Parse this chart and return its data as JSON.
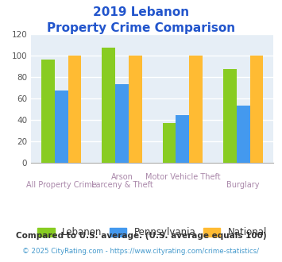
{
  "title_line1": "2019 Lebanon",
  "title_line2": "Property Crime Comparison",
  "x_labels_top": [
    "",
    "Arson",
    "Motor Vehicle Theft",
    ""
  ],
  "x_labels_bot": [
    "All Property Crime",
    "Larceny & Theft",
    "",
    "Burglary"
  ],
  "series": {
    "Lebanon": [
      96,
      107,
      37,
      87
    ],
    "Pennsylvania": [
      67,
      73,
      44,
      53
    ],
    "National": [
      100,
      100,
      100,
      100
    ]
  },
  "colors": {
    "Lebanon": "#88cc22",
    "Pennsylvania": "#4499ee",
    "National": "#ffbb33"
  },
  "ylim": [
    0,
    120
  ],
  "yticks": [
    0,
    20,
    40,
    60,
    80,
    100,
    120
  ],
  "title_color": "#2255cc",
  "title_fontsize": 11,
  "axis_bg_color": "#e6eef6",
  "grid_color": "#ffffff",
  "footnote1": "Compared to U.S. average. (U.S. average equals 100)",
  "footnote2": "© 2025 CityRating.com - https://www.cityrating.com/crime-statistics/",
  "footnote1_color": "#333333",
  "footnote2_color": "#4499cc",
  "xlabel_color": "#aa88aa",
  "legend_labels": [
    "Lebanon",
    "Pennsylvania",
    "National"
  ],
  "bar_width": 0.22
}
